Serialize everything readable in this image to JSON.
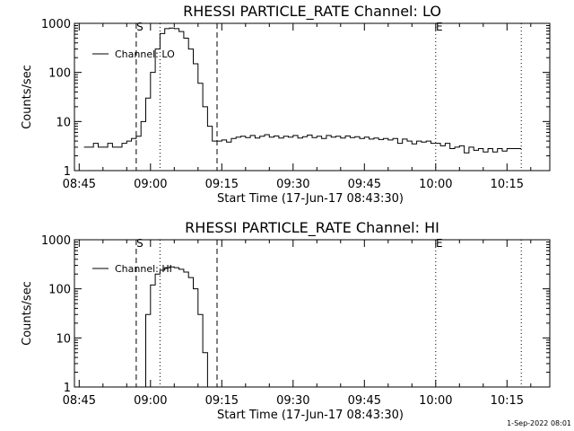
{
  "footer": {
    "timestamp": "1-Sep-2022 08:01"
  },
  "chart_data": [
    {
      "type": "line",
      "title": "RHESSI PARTICLE_RATE Channel: LO",
      "xlabel": "Start Time (17-Jun-17 08:43:30)",
      "ylabel": "Counts/sec",
      "yscale": "log",
      "xlim": [
        "08:44",
        "10:24"
      ],
      "ylim": [
        1,
        1000
      ],
      "xticks": [
        "08:45",
        "09:00",
        "09:15",
        "09:30",
        "09:45",
        "10:00",
        "10:15"
      ],
      "yticks": [
        "1",
        "10",
        "100",
        "1000"
      ],
      "legend": "top-left",
      "grid": false,
      "markers": [
        {
          "label": "S",
          "time": "08:57",
          "style": "dashed"
        },
        {
          "label": "",
          "time": "09:02",
          "style": "dotted"
        },
        {
          "label": "",
          "time": "09:14",
          "style": "dashed"
        },
        {
          "label": "E",
          "time": "10:00",
          "style": "dotted"
        },
        {
          "label": "",
          "time": "10:18",
          "style": "dotted"
        }
      ],
      "series": [
        {
          "name": "Channel: LO",
          "color": "#000000",
          "points": [
            [
              "08:46",
              3.0
            ],
            [
              "08:47",
              3.0
            ],
            [
              "08:48",
              3.6
            ],
            [
              "08:49",
              3.0
            ],
            [
              "08:50",
              3.0
            ],
            [
              "08:51",
              3.6
            ],
            [
              "08:52",
              3.0
            ],
            [
              "08:53",
              3.0
            ],
            [
              "08:54",
              3.6
            ],
            [
              "08:55",
              4.0
            ],
            [
              "08:56",
              4.5
            ],
            [
              "08:57",
              5.0
            ],
            [
              "08:58",
              10
            ],
            [
              "08:59",
              30
            ],
            [
              "09:00",
              100
            ],
            [
              "09:01",
              300
            ],
            [
              "09:02",
              620
            ],
            [
              "09:03",
              780
            ],
            [
              "09:04",
              800
            ],
            [
              "09:05",
              780
            ],
            [
              "09:06",
              680
            ],
            [
              "09:07",
              500
            ],
            [
              "09:08",
              300
            ],
            [
              "09:09",
              150
            ],
            [
              "09:10",
              60
            ],
            [
              "09:11",
              20
            ],
            [
              "09:12",
              8
            ],
            [
              "09:13",
              4.0
            ],
            [
              "09:14",
              4.0
            ],
            [
              "09:15",
              4.2
            ],
            [
              "09:16",
              3.8
            ],
            [
              "09:17",
              4.5
            ],
            [
              "09:18",
              4.8
            ],
            [
              "09:19",
              5.0
            ],
            [
              "09:20",
              4.7
            ],
            [
              "09:21",
              5.2
            ],
            [
              "09:22",
              4.6
            ],
            [
              "09:23",
              5.0
            ],
            [
              "09:24",
              5.4
            ],
            [
              "09:25",
              4.8
            ],
            [
              "09:26",
              5.1
            ],
            [
              "09:27",
              4.6
            ],
            [
              "09:28",
              5.0
            ],
            [
              "09:29",
              4.8
            ],
            [
              "09:30",
              5.2
            ],
            [
              "09:31",
              4.6
            ],
            [
              "09:32",
              4.9
            ],
            [
              "09:33",
              5.3
            ],
            [
              "09:34",
              4.7
            ],
            [
              "09:35",
              5.0
            ],
            [
              "09:36",
              4.5
            ],
            [
              "09:37",
              5.2
            ],
            [
              "09:38",
              4.8
            ],
            [
              "09:39",
              5.0
            ],
            [
              "09:40",
              4.6
            ],
            [
              "09:41",
              5.1
            ],
            [
              "09:42",
              4.7
            ],
            [
              "09:43",
              4.9
            ],
            [
              "09:44",
              4.5
            ],
            [
              "09:45",
              4.8
            ],
            [
              "09:46",
              4.4
            ],
            [
              "09:47",
              4.6
            ],
            [
              "09:48",
              4.3
            ],
            [
              "09:49",
              4.5
            ],
            [
              "09:50",
              4.2
            ],
            [
              "09:51",
              4.5
            ],
            [
              "09:52",
              3.6
            ],
            [
              "09:53",
              4.4
            ],
            [
              "09:54",
              4.0
            ],
            [
              "09:55",
              3.5
            ],
            [
              "09:56",
              4.0
            ],
            [
              "09:57",
              3.8
            ],
            [
              "09:58",
              4.0
            ],
            [
              "09:59",
              3.6
            ],
            [
              "10:00",
              3.6
            ],
            [
              "10:01",
              3.2
            ],
            [
              "10:02",
              3.6
            ],
            [
              "10:03",
              2.8
            ],
            [
              "10:04",
              3.0
            ],
            [
              "10:05",
              3.2
            ],
            [
              "10:06",
              2.3
            ],
            [
              "10:07",
              3.0
            ],
            [
              "10:08",
              2.6
            ],
            [
              "10:09",
              2.8
            ],
            [
              "10:10",
              2.4
            ],
            [
              "10:11",
              2.8
            ],
            [
              "10:12",
              2.4
            ],
            [
              "10:13",
              2.8
            ],
            [
              "10:14",
              2.5
            ],
            [
              "10:15",
              2.8
            ],
            [
              "10:16",
              2.8
            ],
            [
              "10:17",
              2.8
            ]
          ]
        }
      ]
    },
    {
      "type": "line",
      "title": "RHESSI PARTICLE_RATE Channel: HI",
      "xlabel": "Start Time (17-Jun-17 08:43:30)",
      "ylabel": "Counts/sec",
      "yscale": "log",
      "xlim": [
        "08:44",
        "10:24"
      ],
      "ylim": [
        1,
        1000
      ],
      "xticks": [
        "08:45",
        "09:00",
        "09:15",
        "09:30",
        "09:45",
        "10:00",
        "10:15"
      ],
      "yticks": [
        "1",
        "10",
        "100",
        "1000"
      ],
      "legend": "top-left",
      "grid": false,
      "markers": [
        {
          "label": "S",
          "time": "08:57",
          "style": "dashed"
        },
        {
          "label": "",
          "time": "09:02",
          "style": "dotted"
        },
        {
          "label": "",
          "time": "09:14",
          "style": "dashed"
        },
        {
          "label": "E",
          "time": "10:00",
          "style": "dotted"
        },
        {
          "label": "",
          "time": "10:18",
          "style": "dotted"
        }
      ],
      "series": [
        {
          "name": "Channel: HI",
          "color": "#000000",
          "points": [
            [
              "08:58",
              1.0
            ],
            [
              "08:59",
              30
            ],
            [
              "09:00",
              120
            ],
            [
              "09:01",
              200
            ],
            [
              "09:02",
              240
            ],
            [
              "09:03",
              270
            ],
            [
              "09:04",
              280
            ],
            [
              "09:05",
              270
            ],
            [
              "09:06",
              250
            ],
            [
              "09:07",
              220
            ],
            [
              "09:08",
              170
            ],
            [
              "09:09",
              100
            ],
            [
              "09:10",
              30
            ],
            [
              "09:11",
              5
            ],
            [
              "09:12",
              1.0
            ]
          ]
        }
      ]
    }
  ]
}
